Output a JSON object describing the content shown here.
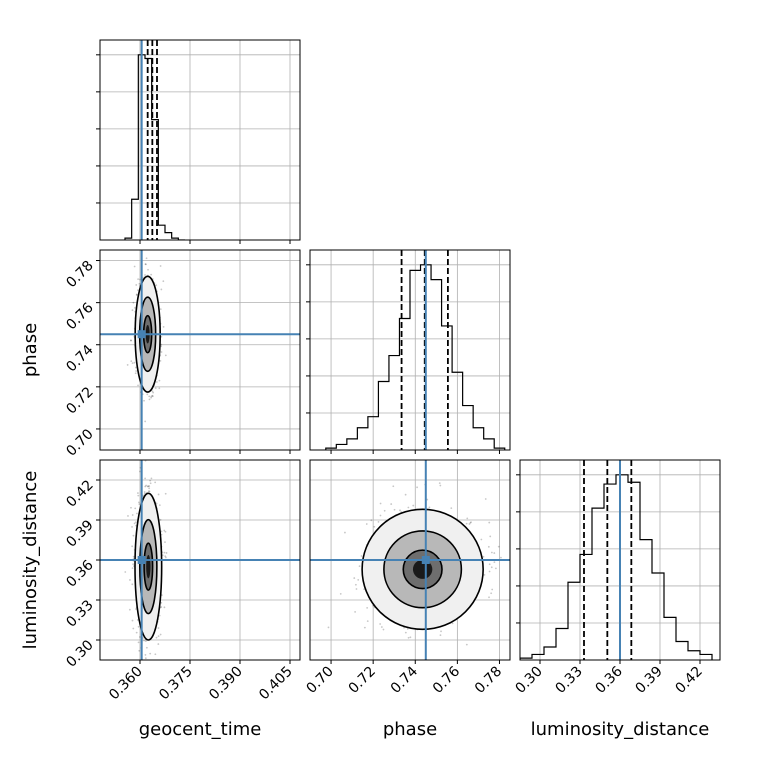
{
  "chart_data": {
    "type": "corner",
    "parameters": [
      "geocent_time",
      "phase",
      "luminosity_distance"
    ],
    "axes": {
      "geocent_time": {
        "label": "geocent_time",
        "range": [
          0.348,
          0.408
        ],
        "ticks": [
          0.36,
          0.375,
          0.39,
          0.405
        ],
        "tick_labels": [
          "0.360",
          "0.375",
          "0.390",
          "0.405"
        ],
        "truth": 0.3605,
        "quantiles": [
          0.3623,
          0.3637,
          0.3651
        ]
      },
      "phase": {
        "label": "phase",
        "range": [
          0.69,
          0.785
        ],
        "ticks": [
          0.7,
          0.72,
          0.74,
          0.76,
          0.78
        ],
        "tick_labels": [
          "0.70",
          "0.72",
          "0.74",
          "0.76",
          "0.78"
        ],
        "truth": 0.745,
        "quantiles": [
          0.7335,
          0.7445,
          0.7555
        ]
      },
      "luminosity_distance": {
        "label": "luminosity_distance",
        "range": [
          0.285,
          0.435
        ],
        "ticks": [
          0.3,
          0.33,
          0.36,
          0.39,
          0.42
        ],
        "tick_labels": [
          "0.30",
          "0.33",
          "0.36",
          "0.39",
          "0.42"
        ],
        "truth": 0.36,
        "quantiles": [
          0.333,
          0.3505,
          0.3685
        ]
      }
    },
    "histograms": {
      "geocent_time": {
        "bin_edges": [
          0.3555,
          0.3575,
          0.3595,
          0.3615,
          0.3635,
          0.3655,
          0.3675,
          0.3695,
          0.3715,
          0.3735
        ],
        "counts": [
          0.01,
          0.22,
          1.0,
          0.98,
          0.65,
          0.08,
          0.04,
          0.01,
          0.0
        ]
      },
      "phase": {
        "bin_edges": [
          0.6975,
          0.7025,
          0.7075,
          0.7125,
          0.7175,
          0.7225,
          0.7275,
          0.7325,
          0.7375,
          0.7425,
          0.7475,
          0.7525,
          0.7575,
          0.7625,
          0.7675,
          0.7725,
          0.7775,
          0.7825
        ],
        "counts": [
          0.01,
          0.03,
          0.06,
          0.12,
          0.18,
          0.37,
          0.51,
          0.71,
          0.97,
          1.0,
          0.92,
          0.67,
          0.42,
          0.24,
          0.12,
          0.06,
          0.01
        ]
      },
      "luminosity_distance": {
        "bin_edges": [
          0.285,
          0.294,
          0.303,
          0.312,
          0.321,
          0.33,
          0.339,
          0.348,
          0.357,
          0.366,
          0.375,
          0.384,
          0.393,
          0.402,
          0.411,
          0.42,
          0.429
        ],
        "counts": [
          0.01,
          0.03,
          0.07,
          0.17,
          0.42,
          0.57,
          0.82,
          0.95,
          1.0,
          0.96,
          0.65,
          0.47,
          0.23,
          0.1,
          0.05,
          0.03
        ]
      }
    },
    "pairs": [
      {
        "x": "geocent_time",
        "y": "phase",
        "center": [
          0.3623,
          0.745
        ],
        "sigma": [
          0.0015,
          0.011
        ],
        "contour_levels": [
          0.8,
          1.6,
          2.5
        ]
      },
      {
        "x": "geocent_time",
        "y": "luminosity_distance",
        "center": [
          0.3625,
          0.355
        ],
        "sigma": [
          0.0016,
          0.022
        ],
        "contour_levels": [
          0.8,
          1.6,
          2.5
        ]
      },
      {
        "x": "phase",
        "y": "luminosity_distance",
        "center": [
          0.7435,
          0.353
        ],
        "sigma": [
          0.0115,
          0.018
        ],
        "contour_levels": [
          0.8,
          1.6,
          2.5
        ]
      }
    ],
    "colors": {
      "truth": "#4682b4",
      "contour": "#000000",
      "grid": "#b0b0b0"
    },
    "grid": true
  }
}
